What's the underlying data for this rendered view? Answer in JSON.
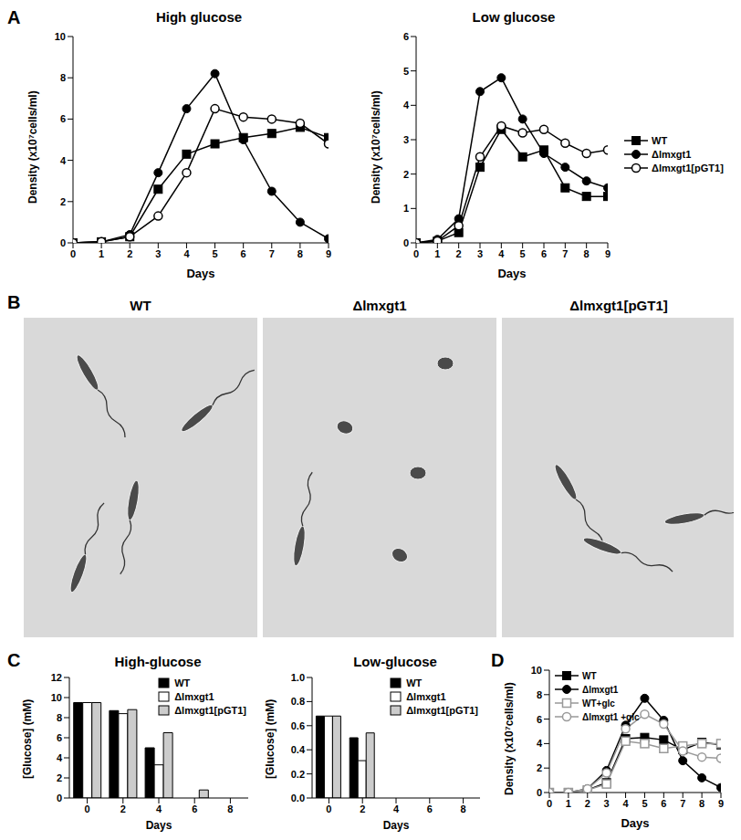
{
  "chart_data": [
    {
      "panel": "A",
      "type": "line",
      "title": "High glucose",
      "x_label": "Days",
      "y_label": "Density (x10⁷cells/ml)",
      "x": [
        0,
        1,
        2,
        3,
        4,
        5,
        6,
        7,
        8,
        9
      ],
      "xlim": [
        0,
        9
      ],
      "xticks": [
        0,
        1,
        2,
        3,
        4,
        5,
        6,
        7,
        8,
        9
      ],
      "ylim": [
        0,
        10
      ],
      "yticks": [
        0,
        2,
        4,
        6,
        8,
        10
      ],
      "series": [
        {
          "name": "WT",
          "color": "#000000",
          "marker": "square",
          "values": [
            0,
            0.05,
            0.3,
            2.6,
            4.3,
            4.8,
            5.1,
            5.3,
            5.6,
            5.1
          ]
        },
        {
          "name": "Δlmxgt1",
          "color": "#000000",
          "marker": "circle",
          "values": [
            0,
            0.05,
            0.4,
            3.4,
            6.5,
            8.2,
            5.0,
            2.5,
            1.0,
            0.2
          ]
        },
        {
          "name": "Δlmxgt1[pGT1]",
          "color": "#000000",
          "marker": "open_circle",
          "values": [
            0,
            0.05,
            0.3,
            1.3,
            3.4,
            6.5,
            6.1,
            6.0,
            5.8,
            4.8
          ]
        }
      ]
    },
    {
      "panel": "",
      "type": "line",
      "title": "Low glucose",
      "x_label": "Days",
      "y_label": "Density (x10⁷cells/ml)",
      "x": [
        0,
        1,
        2,
        3,
        4,
        5,
        6,
        7,
        8,
        9
      ],
      "xlim": [
        0,
        9
      ],
      "xticks": [
        0,
        1,
        2,
        3,
        4,
        5,
        6,
        7,
        8,
        9
      ],
      "ylim": [
        0,
        6
      ],
      "yticks": [
        0,
        1,
        2,
        3,
        4,
        5,
        6
      ],
      "legend": "right",
      "series": [
        {
          "name": "WT",
          "color": "#000000",
          "marker": "square",
          "values": [
            0,
            0.05,
            0.3,
            2.2,
            3.3,
            2.5,
            2.7,
            1.6,
            1.35,
            1.35
          ]
        },
        {
          "name": "Δlmxgt1",
          "color": "#000000",
          "marker": "circle",
          "values": [
            0,
            0.1,
            0.7,
            4.4,
            4.8,
            3.6,
            2.6,
            2.2,
            1.8,
            1.6
          ]
        },
        {
          "name": "Δlmxgt1[pGT1]",
          "color": "#000000",
          "marker": "open_circle",
          "values": [
            0,
            0.05,
            0.5,
            2.5,
            3.4,
            3.2,
            3.3,
            2.9,
            2.6,
            2.7
          ]
        }
      ]
    },
    {
      "panel": "C",
      "type": "bar",
      "title": "High-glucose",
      "x_label": "Days",
      "y_label": "[Glucose] (mM)",
      "categories": [
        "0",
        "2",
        "4",
        "6",
        "8"
      ],
      "ylim": [
        0,
        12
      ],
      "yticks": [
        0,
        2,
        4,
        6,
        8,
        10,
        12
      ],
      "legend": "upper right",
      "series": [
        {
          "name": "WT",
          "color": "#000000",
          "values": [
            9.5,
            8.7,
            5.0,
            0,
            0
          ]
        },
        {
          "name": "Δlmxgt1",
          "color": "#ffffff",
          "values": [
            9.5,
            8.4,
            3.3,
            0,
            0
          ]
        },
        {
          "name": "Δlmxgt1[pGT1]",
          "color": "#cccccc",
          "values": [
            9.5,
            8.8,
            6.5,
            0.8,
            0
          ]
        }
      ]
    },
    {
      "panel": "",
      "type": "bar",
      "title": "Low-glucose",
      "x_label": "Days",
      "y_label": "[Glucose] (mM)",
      "categories": [
        "0",
        "2",
        "4",
        "6",
        "8"
      ],
      "ylim": [
        0,
        1.0
      ],
      "yticks": [
        {
          "value": 0,
          "label": "0.0"
        },
        {
          "value": 0.2,
          "label": "0.2"
        },
        {
          "value": 0.4,
          "label": "0.4"
        },
        {
          "value": 0.6,
          "label": "0.6"
        },
        {
          "value": 0.8,
          "label": "0.8"
        },
        {
          "value": 1.0,
          "label": "1.0"
        }
      ],
      "legend": "upper right",
      "series": [
        {
          "name": "WT",
          "color": "#000000",
          "values": [
            0.68,
            0.5,
            0,
            0,
            0
          ]
        },
        {
          "name": "Δlmxgt1",
          "color": "#ffffff",
          "values": [
            0.68,
            0.31,
            0,
            0,
            0
          ]
        },
        {
          "name": "Δlmxgt1[pGT1]",
          "color": "#cccccc",
          "values": [
            0.68,
            0.54,
            0,
            0,
            0
          ]
        }
      ]
    },
    {
      "panel": "D",
      "type": "line",
      "x_label": "Days",
      "y_label": "Density (x10⁷cells/ml)",
      "x": [
        0,
        1,
        2,
        3,
        4,
        5,
        6,
        7,
        8,
        9
      ],
      "xlim": [
        0,
        9
      ],
      "xticks": [
        0,
        1,
        2,
        3,
        4,
        5,
        6,
        7,
        8,
        9
      ],
      "ylim": [
        0,
        10
      ],
      "yticks": [
        0,
        2,
        4,
        6,
        8,
        10
      ],
      "legend": "upper left",
      "series": [
        {
          "name": "WT",
          "color": "#000000",
          "marker": "square",
          "values": [
            0,
            0,
            0.2,
            0.8,
            4.4,
            4.5,
            4.3,
            3.5,
            4.1,
            3.9
          ]
        },
        {
          "name": "Δlmxgt1",
          "color": "#000000",
          "marker": "circle",
          "values": [
            0,
            0,
            0.3,
            1.8,
            5.5,
            7.7,
            5.9,
            2.6,
            1.2,
            0.4
          ]
        },
        {
          "name": "WT+glc",
          "color": "#999999",
          "marker": "open_square",
          "values": [
            0,
            0,
            0.2,
            0.7,
            4.2,
            4.0,
            3.6,
            3.8,
            4.0,
            4.0
          ]
        },
        {
          "name": "Δlmxgt1 +glc",
          "color": "#999999",
          "marker": "open_circle",
          "values": [
            0,
            0,
            0.3,
            1.6,
            5.2,
            6.4,
            5.6,
            3.4,
            2.9,
            2.8
          ]
        }
      ]
    }
  ],
  "images": {
    "panel": "B",
    "labels": [
      "WT",
      "Δlmxgt1",
      "Δlmxgt1[pGT1]"
    ]
  }
}
